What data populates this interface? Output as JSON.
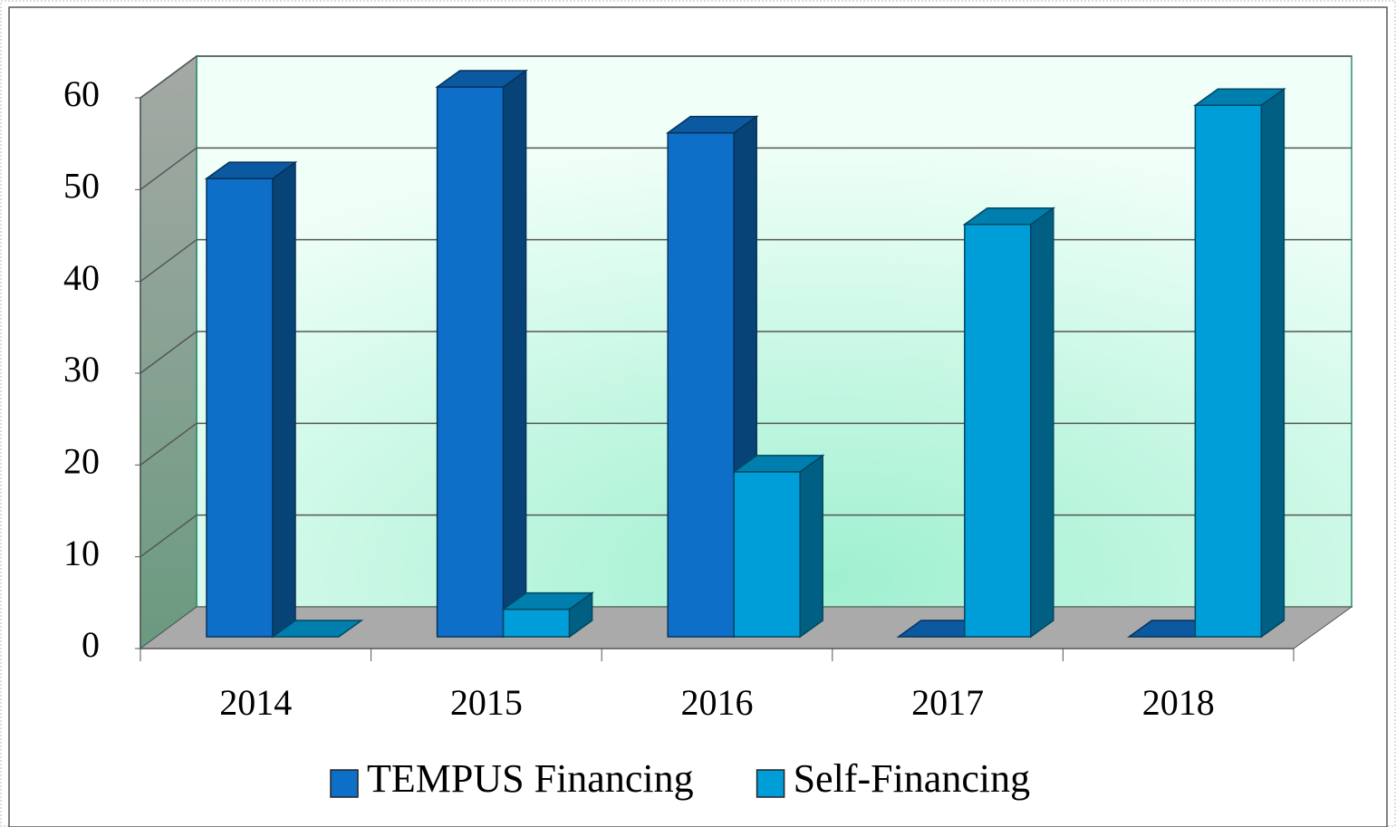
{
  "chart_data": {
    "type": "bar3d",
    "categories": [
      "2014",
      "2015",
      "2016",
      "2017",
      "2018"
    ],
    "series": [
      {
        "name": "TEMPUS Financing",
        "color": "#0e6fc8",
        "values": [
          50,
          60,
          55,
          0,
          0
        ]
      },
      {
        "name": "Self-Financing",
        "color": "#009ed8",
        "values": [
          0,
          3,
          18,
          45,
          58
        ]
      }
    ],
    "ylim": [
      0,
      60
    ],
    "yticks": [
      0,
      10,
      20,
      30,
      40,
      50,
      60
    ],
    "grid": true,
    "legend": "bottom"
  }
}
